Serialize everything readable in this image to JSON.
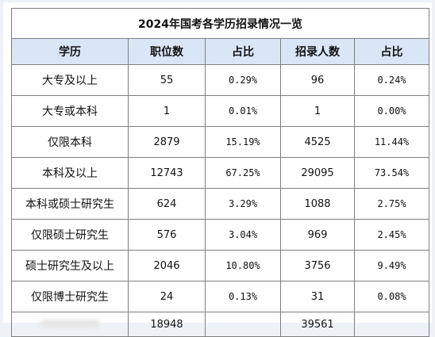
{
  "chart_data": {
    "type": "table",
    "title": "2024年国考各学历招录情况一览",
    "columns": [
      "学历",
      "职位数",
      "占比",
      "招录人数",
      "占比"
    ],
    "rows": [
      [
        "大专及以上",
        "55",
        "0.29%",
        "96",
        "0.24%"
      ],
      [
        "大专或本科",
        "1",
        "0.01%",
        "1",
        "0.00%"
      ],
      [
        "仅限本科",
        "2879",
        "15.19%",
        "4525",
        "11.44%"
      ],
      [
        "本科及以上",
        "12743",
        "67.25%",
        "29095",
        "73.54%"
      ],
      [
        "本科或硕士研究生",
        "624",
        "3.29%",
        "1088",
        "2.75%"
      ],
      [
        "仅限硕士研究生",
        "576",
        "3.04%",
        "969",
        "2.45%"
      ],
      [
        "硕士研究生及以上",
        "2046",
        "10.80%",
        "3756",
        "9.49%"
      ],
      [
        "仅限博士研究生",
        "24",
        "0.13%",
        "31",
        "0.08%"
      ]
    ],
    "totals": [
      "",
      "18948",
      "",
      "39561",
      ""
    ]
  }
}
